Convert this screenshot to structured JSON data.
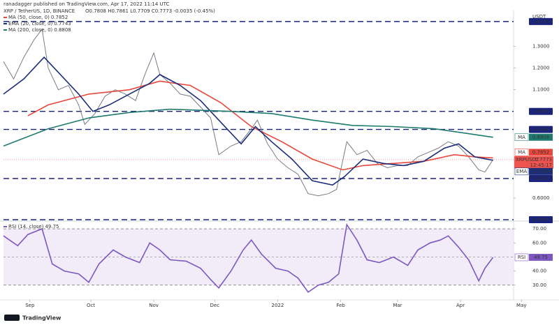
{
  "header": {
    "published": "ranadagger published on TradingView.com, Apr 17, 2022 11:14 UTC",
    "symbol": "XRP / TetherUS, 1D, BINANCE",
    "ohlc": "O0.7808 H0.7861 L0.7709 C0.7773 -0.0035 (-0.45%)",
    "currency": "USDT",
    "countdown": "12:45:17",
    "footer": "TradingView"
  },
  "chart_data": [
    {
      "type": "line",
      "xlim": [
        18,
        276
      ],
      "ylim": [
        0.5,
        1.45
      ],
      "yticks": [
        {
          "value": 0.6,
          "label": "0.6000"
        },
        {
          "value": 1.1,
          "label": "1.1000"
        },
        {
          "value": 1.2,
          "label": "1.2000"
        },
        {
          "value": 1.3,
          "label": "1.3000"
        }
      ],
      "grid": false,
      "levels": [
        {
          "value": 1.415,
          "label": "1.4150"
        },
        {
          "value": 1.0,
          "label": "1.0000"
        },
        {
          "value": 0.9168,
          "label": "0.9168"
        },
        {
          "value": 0.69,
          "label": "0.6900"
        },
        {
          "value": 0.5,
          "label": "0.5000"
        }
      ],
      "series": [
        {
          "name": "XRPUSDT",
          "color": "#787b86",
          "x": [
            18,
            23,
            28,
            33,
            37,
            40,
            45,
            50,
            55,
            58,
            63,
            68,
            73,
            78,
            83,
            88,
            92,
            95,
            100,
            105,
            110,
            115,
            120,
            124,
            130,
            135,
            140,
            143,
            148,
            153,
            158,
            163,
            168,
            173,
            178,
            182,
            187,
            192,
            197,
            202,
            207,
            212,
            217,
            222,
            227,
            232,
            237,
            242,
            247,
            252,
            255,
            259
          ],
          "values": [
            1.23,
            1.15,
            1.25,
            1.33,
            1.38,
            1.2,
            1.1,
            1.12,
            1.03,
            0.94,
            0.99,
            1.07,
            1.1,
            1.08,
            1.05,
            1.18,
            1.27,
            1.17,
            1.13,
            1.08,
            1.07,
            1.02,
            0.97,
            0.8,
            0.84,
            0.86,
            0.92,
            0.96,
            0.85,
            0.78,
            0.74,
            0.71,
            0.62,
            0.61,
            0.62,
            0.64,
            0.86,
            0.8,
            0.82,
            0.76,
            0.74,
            0.75,
            0.75,
            0.79,
            0.81,
            0.83,
            0.86,
            0.84,
            0.79,
            0.73,
            0.72,
            0.7773
          ]
        },
        {
          "name": "MA (50, close, 0)",
          "tag": "MA",
          "color": "#e8473b",
          "x": [
            30,
            40,
            60,
            80,
            95,
            110,
            125,
            140,
            155,
            170,
            185,
            195,
            210,
            225,
            240,
            250,
            259
          ],
          "values": [
            0.98,
            1.03,
            1.08,
            1.1,
            1.14,
            1.12,
            1.04,
            0.93,
            0.86,
            0.78,
            0.73,
            0.75,
            0.76,
            0.77,
            0.8,
            0.79,
            0.7852
          ]
        },
        {
          "name": "EMA (20, close, 0)",
          "tag": "EMA",
          "color": "#1c2e7a",
          "x": [
            18,
            28,
            38,
            45,
            55,
            62,
            70,
            80,
            90,
            95,
            105,
            115,
            125,
            135,
            142,
            150,
            160,
            170,
            180,
            186,
            195,
            205,
            215,
            225,
            235,
            242,
            250,
            259
          ],
          "values": [
            1.08,
            1.15,
            1.25,
            1.18,
            1.08,
            1.0,
            1.03,
            1.08,
            1.13,
            1.17,
            1.12,
            1.05,
            0.95,
            0.85,
            0.93,
            0.86,
            0.78,
            0.68,
            0.66,
            0.7,
            0.78,
            0.76,
            0.75,
            0.77,
            0.83,
            0.85,
            0.79,
            0.7743
          ]
        },
        {
          "name": "MA (200, close, 0)",
          "tag": "MA",
          "color": "#1e7b6f",
          "x": [
            18,
            40,
            60,
            80,
            100,
            130,
            150,
            170,
            190,
            210,
            230,
            245,
            259
          ],
          "values": [
            0.84,
            0.92,
            0.97,
            0.995,
            1.01,
            1.0,
            0.99,
            0.96,
            0.935,
            0.93,
            0.92,
            0.9,
            0.8808
          ]
        }
      ]
    },
    {
      "type": "line",
      "title": "RSI (14, close)",
      "xlim": [
        18,
        276
      ],
      "ylim": [
        21,
        74
      ],
      "yticks": [
        {
          "value": 30,
          "label": "30.00"
        },
        {
          "value": 40,
          "label": "40.00"
        },
        {
          "value": 60,
          "label": "60.00"
        },
        {
          "value": 70,
          "label": "70.00"
        }
      ],
      "band": [
        30,
        70
      ],
      "midline": 50,
      "xticks": [
        {
          "value": 31,
          "label": "Sep"
        },
        {
          "value": 61,
          "label": "Oct"
        },
        {
          "value": 92,
          "label": "Nov"
        },
        {
          "value": 122,
          "label": "Dec"
        },
        {
          "value": 153,
          "label": "2022"
        },
        {
          "value": 184,
          "label": "Feb"
        },
        {
          "value": 212,
          "label": "Mar"
        },
        {
          "value": 243,
          "label": "Apr"
        },
        {
          "value": 273,
          "label": "May"
        }
      ],
      "series": [
        {
          "name": "RSI",
          "color": "#7e57c2",
          "x": [
            18,
            25,
            30,
            37,
            42,
            48,
            55,
            60,
            65,
            72,
            78,
            85,
            90,
            95,
            100,
            108,
            115,
            120,
            124,
            130,
            136,
            140,
            145,
            152,
            158,
            163,
            168,
            173,
            178,
            183,
            187,
            192,
            197,
            203,
            210,
            217,
            222,
            228,
            233,
            237,
            242,
            247,
            252,
            255,
            259
          ],
          "values": [
            65,
            58,
            66,
            70,
            45,
            40,
            38,
            32,
            45,
            55,
            50,
            46,
            60,
            55,
            48,
            47,
            42,
            34,
            28,
            40,
            55,
            62,
            52,
            42,
            40,
            35,
            25,
            30,
            32,
            38,
            73,
            62,
            48,
            46,
            50,
            44,
            55,
            60,
            62,
            65,
            57,
            48,
            33,
            42,
            49.75
          ]
        }
      ]
    }
  ]
}
